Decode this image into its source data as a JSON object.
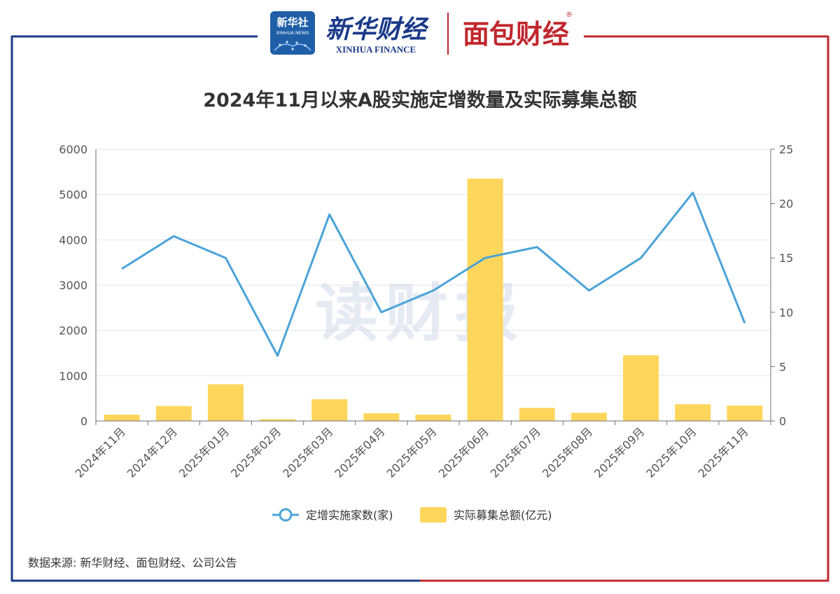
{
  "header": {
    "logo1": {
      "text": "新华社",
      "sub": "XINHUA NEWS"
    },
    "logo2": {
      "text": "新华财经",
      "sub": "XINHUA FINANCE"
    },
    "logo3": {
      "text": "面包财经",
      "mark": "®"
    },
    "colors": {
      "blue": "#1a3a8a",
      "red": "#c0272d"
    }
  },
  "watermark": "读财报",
  "source": "数据来源: 新华财经、面包财经、公司公告",
  "chart_data": {
    "type": "bar",
    "title": "2024年11月以来A股实施定增数量及实际募集总额",
    "categories": [
      "2024年11月",
      "2024年12月",
      "2025年01月",
      "2025年02月",
      "2025年03月",
      "2025年04月",
      "2025年05月",
      "2025年06月",
      "2025年07月",
      "2025年08月",
      "2025年09月",
      "2025年10月",
      "2025年11月"
    ],
    "series": [
      {
        "name": "定增实施家数(家)",
        "type": "line",
        "axis": "right",
        "color": "#4aa3d8",
        "values": [
          14,
          17,
          15,
          6,
          19,
          10,
          12,
          15,
          16,
          12,
          15,
          21,
          9
        ]
      },
      {
        "name": "实际募集总额(亿元)",
        "type": "bar",
        "axis": "left",
        "color": "#ffd65c",
        "values": [
          140,
          330,
          810,
          40,
          480,
          170,
          140,
          5350,
          290,
          180,
          1450,
          370,
          340
        ]
      }
    ],
    "y_left": {
      "min": 0,
      "max": 6000,
      "ticks": [
        "0",
        "1000",
        "2000",
        "3000",
        "4000",
        "5000",
        "6000"
      ]
    },
    "y_right": {
      "min": 0,
      "max": 25,
      "ticks": [
        "0",
        "5",
        "10",
        "15",
        "20",
        "25"
      ]
    },
    "grid": true,
    "legend": "bottom-center"
  }
}
